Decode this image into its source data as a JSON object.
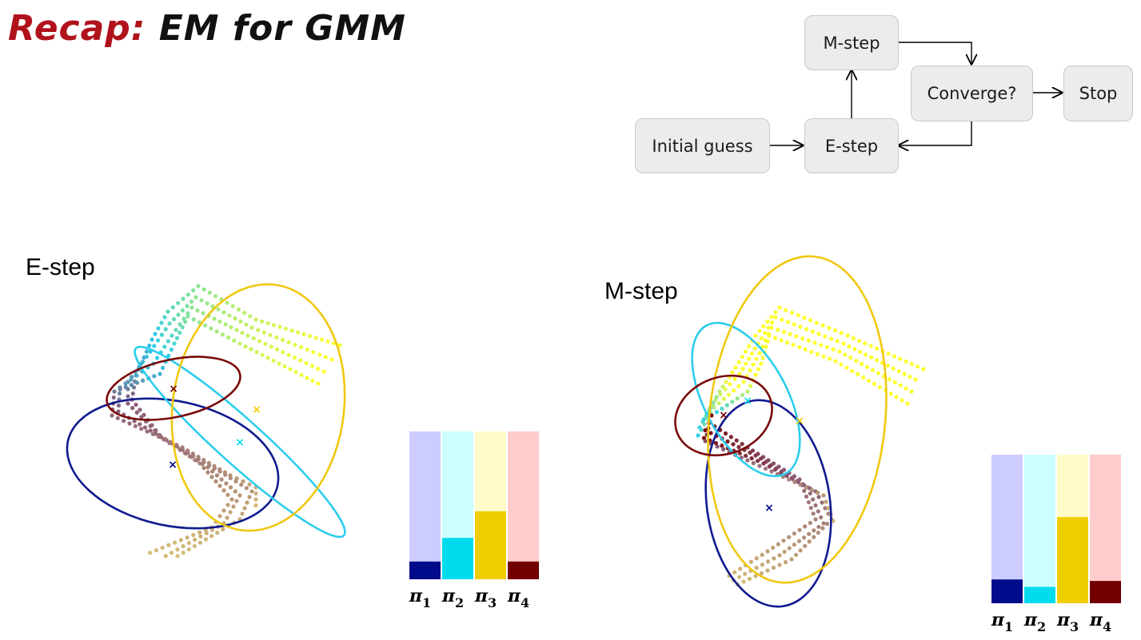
{
  "title": {
    "highlight": "Recap:",
    "rest": "EM for GMM"
  },
  "flowchart": {
    "nodes": {
      "initial": "Initial guess",
      "estep": "E-step",
      "mstep": "M-step",
      "converge": "Converge?",
      "stop": "Stop"
    }
  },
  "panels": [
    {
      "label": "E-step",
      "mixing_weights": {
        "labels": [
          "π1",
          "π2",
          "π3",
          "π4"
        ],
        "values": [
          0.12,
          0.28,
          0.46,
          0.12
        ]
      }
    },
    {
      "label": "M-step",
      "mixing_weights": {
        "labels": [
          "π1",
          "π2",
          "π3",
          "π4"
        ],
        "values": [
          0.16,
          0.11,
          0.58,
          0.15
        ]
      }
    }
  ],
  "colors": {
    "comp1": "#000c8c",
    "comp1_light": "#ccccfe",
    "comp2": "#00dced",
    "comp2_light": "#ccffff",
    "comp3": "#f0cd00",
    "comp3_light": "#fffcc9",
    "comp4": "#720000",
    "comp4_light": "#ffcccc",
    "ellipse_blue": "#101a8f",
    "ellipse_cyan": "#2ccdec",
    "ellipse_gold": "#f0c810",
    "ellipse_red": "#7a0a0a",
    "dots_yellow": "#ffff33",
    "dots_tan": "#d8c078",
    "dots_purple": "#8a5a78"
  }
}
